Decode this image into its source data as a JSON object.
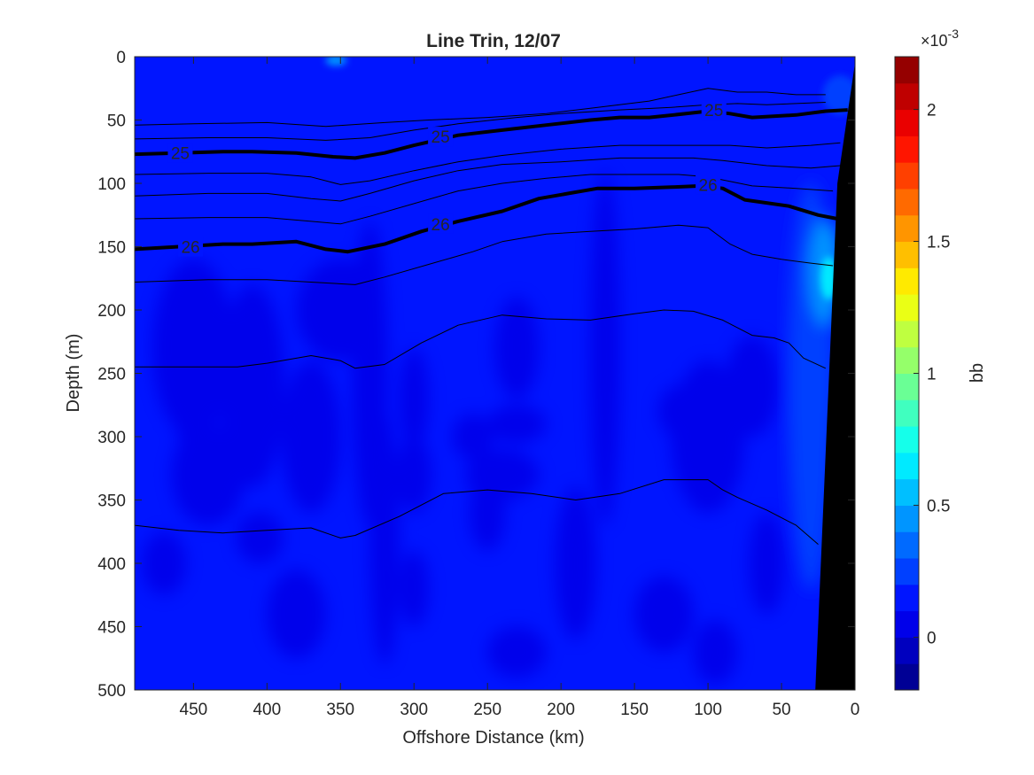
{
  "chart_data": {
    "type": "heatmap",
    "title": "Line Trin, 12/07",
    "xlabel": "Offshore Distance (km)",
    "ylabel": "Depth (m)",
    "xlim": [
      490,
      0
    ],
    "ylim": [
      0,
      500
    ],
    "x_reversed": true,
    "y_reversed": true,
    "x_ticks": [
      450,
      400,
      350,
      300,
      250,
      200,
      150,
      100,
      50,
      0
    ],
    "y_ticks": [
      0,
      50,
      100,
      150,
      200,
      250,
      300,
      350,
      400,
      450,
      500
    ],
    "colorbar": {
      "label": "bb",
      "exponent_label": "×10",
      "exponent": "-3",
      "range": [
        -0.2,
        2.2
      ],
      "ticks": [
        0,
        0.5,
        1,
        1.5,
        2
      ],
      "colormap": "jet",
      "levels": 24
    },
    "field_description_values": {
      "background_bb": 0.1,
      "deep_pockets_bb": 0.0,
      "nearshore_max_bb": 0.65,
      "nearshore_max_depth": 175,
      "nearshore_max_distance": 18
    },
    "density_contours": [
      {
        "level": 25,
        "bold": true,
        "label": "25",
        "points": [
          [
            490,
            77
          ],
          [
            460,
            76
          ],
          [
            430,
            75
          ],
          [
            410,
            75
          ],
          [
            380,
            76
          ],
          [
            355,
            79
          ],
          [
            340,
            80
          ],
          [
            320,
            76
          ],
          [
            300,
            70
          ],
          [
            270,
            62
          ],
          [
            240,
            58
          ],
          [
            210,
            54
          ],
          [
            180,
            50
          ],
          [
            160,
            48
          ],
          [
            140,
            48
          ],
          [
            115,
            45
          ],
          [
            100,
            43
          ],
          [
            85,
            45
          ],
          [
            70,
            48
          ],
          [
            40,
            46
          ],
          [
            20,
            43
          ],
          [
            5,
            42
          ]
        ]
      },
      {
        "level": 26,
        "bold": true,
        "label": "26",
        "points": [
          [
            490,
            152
          ],
          [
            460,
            150
          ],
          [
            430,
            148
          ],
          [
            410,
            148
          ],
          [
            380,
            146
          ],
          [
            360,
            152
          ],
          [
            345,
            154
          ],
          [
            320,
            148
          ],
          [
            295,
            138
          ],
          [
            270,
            130
          ],
          [
            240,
            122
          ],
          [
            215,
            112
          ],
          [
            195,
            108
          ],
          [
            175,
            104
          ],
          [
            150,
            104
          ],
          [
            125,
            103
          ],
          [
            105,
            102
          ],
          [
            90,
            104
          ],
          [
            75,
            113
          ],
          [
            45,
            118
          ],
          [
            25,
            125
          ],
          [
            12,
            128
          ]
        ]
      },
      {
        "level": 24.5,
        "bold": false,
        "label": "",
        "points": [
          [
            490,
            54
          ],
          [
            450,
            53
          ],
          [
            400,
            52
          ],
          [
            360,
            55
          ],
          [
            320,
            52
          ],
          [
            290,
            50
          ],
          [
            250,
            48
          ],
          [
            210,
            45
          ],
          [
            175,
            40
          ],
          [
            140,
            35
          ],
          [
            120,
            30
          ],
          [
            100,
            25
          ],
          [
            80,
            28
          ],
          [
            60,
            28
          ],
          [
            40,
            30
          ],
          [
            20,
            30
          ]
        ]
      },
      {
        "level": 24.75,
        "bold": false,
        "label": "",
        "points": [
          [
            490,
            65
          ],
          [
            440,
            64
          ],
          [
            400,
            64
          ],
          [
            360,
            66
          ],
          [
            330,
            64
          ],
          [
            300,
            58
          ],
          [
            270,
            53
          ],
          [
            230,
            48
          ],
          [
            200,
            45
          ],
          [
            160,
            42
          ],
          [
            125,
            40
          ],
          [
            100,
            38
          ],
          [
            80,
            37
          ],
          [
            60,
            38
          ],
          [
            40,
            37
          ],
          [
            20,
            36
          ]
        ]
      },
      {
        "level": 25.25,
        "bold": false,
        "label": "",
        "points": [
          [
            490,
            93
          ],
          [
            440,
            92
          ],
          [
            400,
            92
          ],
          [
            370,
            95
          ],
          [
            350,
            101
          ],
          [
            330,
            98
          ],
          [
            300,
            90
          ],
          [
            270,
            83
          ],
          [
            240,
            78
          ],
          [
            200,
            73
          ],
          [
            160,
            70
          ],
          [
            130,
            70
          ],
          [
            105,
            70
          ],
          [
            85,
            70
          ],
          [
            60,
            72
          ],
          [
            30,
            70
          ],
          [
            10,
            68
          ]
        ]
      },
      {
        "level": 25.5,
        "bold": false,
        "label": "",
        "points": [
          [
            490,
            110
          ],
          [
            440,
            108
          ],
          [
            400,
            108
          ],
          [
            370,
            112
          ],
          [
            350,
            114
          ],
          [
            330,
            108
          ],
          [
            300,
            98
          ],
          [
            270,
            90
          ],
          [
            240,
            85
          ],
          [
            200,
            83
          ],
          [
            160,
            80
          ],
          [
            130,
            80
          ],
          [
            110,
            80
          ],
          [
            90,
            82
          ],
          [
            60,
            86
          ],
          [
            30,
            88
          ],
          [
            10,
            86
          ]
        ]
      },
      {
        "level": 25.75,
        "bold": false,
        "label": "",
        "points": [
          [
            490,
            128
          ],
          [
            440,
            127
          ],
          [
            400,
            127
          ],
          [
            370,
            130
          ],
          [
            350,
            132
          ],
          [
            330,
            126
          ],
          [
            300,
            116
          ],
          [
            270,
            106
          ],
          [
            240,
            100
          ],
          [
            210,
            96
          ],
          [
            180,
            93
          ],
          [
            150,
            93
          ],
          [
            120,
            93
          ],
          [
            100,
            95
          ],
          [
            70,
            102
          ],
          [
            40,
            104
          ],
          [
            15,
            106
          ]
        ]
      },
      {
        "level": 26.25,
        "bold": false,
        "label": "",
        "points": [
          [
            490,
            178
          ],
          [
            440,
            176
          ],
          [
            400,
            176
          ],
          [
            370,
            178
          ],
          [
            340,
            180
          ],
          [
            320,
            174
          ],
          [
            290,
            164
          ],
          [
            260,
            154
          ],
          [
            240,
            146
          ],
          [
            210,
            140
          ],
          [
            180,
            138
          ],
          [
            150,
            136
          ],
          [
            120,
            133
          ],
          [
            100,
            135
          ],
          [
            85,
            148
          ],
          [
            70,
            156
          ],
          [
            50,
            160
          ],
          [
            30,
            163
          ],
          [
            15,
            165
          ]
        ]
      },
      {
        "level": 26.5,
        "bold": false,
        "label": "",
        "points": [
          [
            490,
            245
          ],
          [
            450,
            245
          ],
          [
            420,
            245
          ],
          [
            400,
            242
          ],
          [
            370,
            236
          ],
          [
            350,
            240
          ],
          [
            340,
            246
          ],
          [
            320,
            243
          ],
          [
            295,
            226
          ],
          [
            270,
            212
          ],
          [
            240,
            204
          ],
          [
            210,
            207
          ],
          [
            180,
            208
          ],
          [
            150,
            203
          ],
          [
            130,
            200
          ],
          [
            110,
            201
          ],
          [
            90,
            208
          ],
          [
            70,
            220
          ],
          [
            55,
            222
          ],
          [
            45,
            226
          ],
          [
            35,
            238
          ],
          [
            20,
            246
          ]
        ]
      },
      {
        "level": 26.75,
        "bold": false,
        "label": "",
        "points": [
          [
            490,
            370
          ],
          [
            460,
            374
          ],
          [
            430,
            376
          ],
          [
            400,
            374
          ],
          [
            370,
            372
          ],
          [
            350,
            380
          ],
          [
            340,
            378
          ],
          [
            310,
            363
          ],
          [
            280,
            345
          ],
          [
            250,
            342
          ],
          [
            220,
            345
          ],
          [
            190,
            350
          ],
          [
            160,
            345
          ],
          [
            130,
            334
          ],
          [
            100,
            334
          ],
          [
            90,
            342
          ],
          [
            80,
            348
          ],
          [
            60,
            358
          ],
          [
            40,
            370
          ],
          [
            25,
            385
          ]
        ]
      }
    ],
    "contour_labels": [
      {
        "text": "25",
        "x": 459,
        "y": 76
      },
      {
        "text": "25",
        "x": 282,
        "y": 63
      },
      {
        "text": "25",
        "x": 96,
        "y": 42
      },
      {
        "text": "26",
        "x": 452,
        "y": 150
      },
      {
        "text": "26",
        "x": 282,
        "y": 132
      },
      {
        "text": "26",
        "x": 100,
        "y": 101
      }
    ],
    "bathymetry": [
      [
        0,
        5
      ],
      [
        0,
        500
      ],
      [
        27,
        500
      ],
      [
        12,
        100
      ],
      [
        0,
        5
      ]
    ]
  }
}
